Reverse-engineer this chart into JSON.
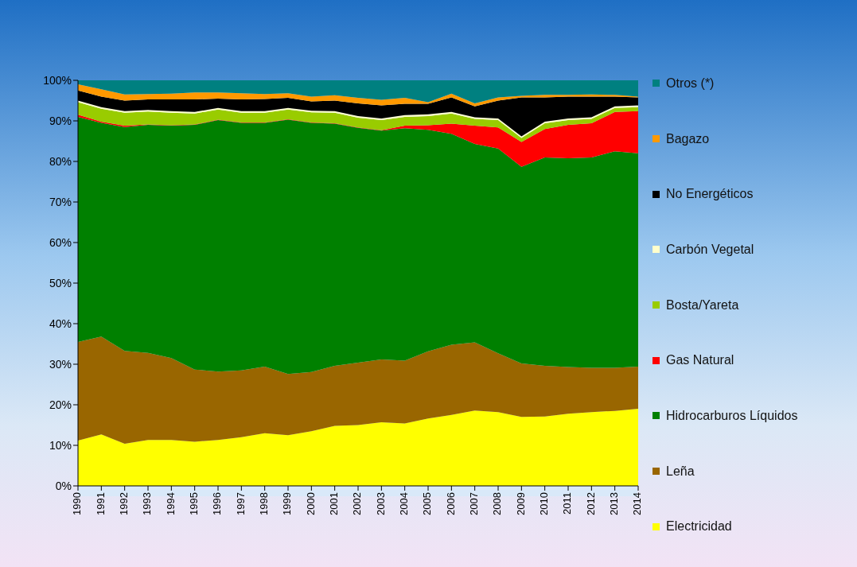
{
  "chart_data": {
    "type": "area",
    "stacked": true,
    "legend": "right",
    "grid": false,
    "categories": [
      "1990",
      "1991",
      "1992",
      "1993",
      "1994",
      "1995",
      "1996",
      "1997",
      "1998",
      "1999",
      "2000",
      "2001",
      "2002",
      "2003",
      "2004",
      "2005",
      "2006",
      "2007",
      "2008",
      "2009",
      "2010",
      "2011",
      "2012",
      "2013",
      "2014"
    ],
    "ylim": [
      0,
      100
    ],
    "yticks": [
      {
        "value": 0,
        "label": "0%"
      },
      {
        "value": 10,
        "label": "10%"
      },
      {
        "value": 20,
        "label": "20%"
      },
      {
        "value": 30,
        "label": "30%"
      },
      {
        "value": 40,
        "label": "40%"
      },
      {
        "value": 50,
        "label": "50%"
      },
      {
        "value": 60,
        "label": "60%"
      },
      {
        "value": 70,
        "label": "70%"
      },
      {
        "value": 80,
        "label": "80%"
      },
      {
        "value": 90,
        "label": "90%"
      },
      {
        "value": 100,
        "label": "100%"
      }
    ],
    "series": [
      {
        "name": "Electricidad",
        "color": "#ffff00",
        "values": [
          11.2,
          12.7,
          10.4,
          11.3,
          11.3,
          10.9,
          11.3,
          12,
          13,
          12.5,
          13.5,
          14.8,
          15,
          15.7,
          15.4,
          16.6,
          17.5,
          18.6,
          18.2,
          17,
          17.1,
          17.8,
          18.2,
          18.5,
          19
        ]
      },
      {
        "name": "Leña",
        "color": "#996600",
        "values": [
          24.3,
          24.1,
          22.9,
          21.5,
          20.2,
          17.8,
          16.9,
          16.5,
          16.4,
          15.1,
          14.6,
          14.8,
          15.4,
          15.5,
          15.5,
          16.6,
          17.3,
          16.8,
          14.5,
          13.2,
          12.5,
          11.5,
          10.9,
          10.6,
          10.4
        ]
      },
      {
        "name": "Hidrocarburos Líquidos",
        "color": "#008000",
        "values": [
          55.5,
          52.7,
          55.2,
          56.2,
          57.3,
          60.3,
          62,
          61,
          60.1,
          62.7,
          61.4,
          59.7,
          57.9,
          56.4,
          57.3,
          54.6,
          52,
          48.9,
          50.5,
          48.5,
          51.4,
          51.5,
          51.9,
          53.4,
          52.6
        ]
      },
      {
        "name": "Gas Natural",
        "color": "#ff0000",
        "values": [
          0.5,
          0.3,
          0.3,
          0.1,
          0.1,
          0.1,
          0.1,
          0.1,
          0.1,
          0.1,
          0.1,
          0.1,
          0.1,
          0.1,
          0.6,
          1.1,
          2.5,
          4.5,
          5.2,
          6.1,
          7,
          8.2,
          8.4,
          9.7,
          10.4
        ]
      },
      {
        "name": "Bosta/Yareta",
        "color": "#99cc00",
        "values": [
          3.1,
          3.2,
          3.2,
          3.2,
          3.1,
          2.7,
          2.5,
          2.4,
          2.4,
          2.4,
          2.5,
          2.6,
          2.4,
          2.5,
          2.2,
          2.3,
          2.5,
          1.7,
          1.8,
          1,
          1.4,
          1.2,
          1.1,
          1,
          1
        ]
      },
      {
        "name": "Carbón Vegetal",
        "color": "#ffffcc",
        "values": [
          0.4,
          0.4,
          0.4,
          0.4,
          0.4,
          0.4,
          0.4,
          0.4,
          0.4,
          0.4,
          0.4,
          0.4,
          0.4,
          0.4,
          0.4,
          0.4,
          0.4,
          0.4,
          0.4,
          0.4,
          0.4,
          0.4,
          0.4,
          0.4,
          0.4
        ]
      },
      {
        "name": "No Energéticos",
        "color": "#000000",
        "values": [
          2.5,
          2.6,
          2.6,
          2.6,
          2.9,
          3.1,
          2.3,
          2.9,
          3,
          2.5,
          2.3,
          2.6,
          3.1,
          3.2,
          2.8,
          2.6,
          3.6,
          2.7,
          4.4,
          9.6,
          6,
          5.4,
          5.1,
          2.4,
          2
        ]
      },
      {
        "name": "Bagazo",
        "color": "#ff9900",
        "values": [
          1.5,
          1.8,
          1.5,
          1.3,
          1.4,
          1.7,
          1.5,
          1.5,
          1.2,
          1.1,
          1.2,
          1.3,
          1.4,
          1.4,
          1.5,
          0.4,
          0.9,
          0.7,
          0.8,
          0.4,
          0.6,
          0.4,
          0.5,
          0.4,
          0.2
        ]
      },
      {
        "name": "Otros (*)",
        "color": "#008080",
        "values": [
          1,
          2.2,
          3.5,
          3.4,
          3.3,
          3,
          3,
          3.2,
          3.4,
          3.2,
          4,
          3.7,
          4.3,
          4.8,
          4.3,
          5.4,
          3.3,
          5.7,
          4.2,
          3.8,
          3.6,
          3.6,
          3.5,
          3.6,
          4
        ]
      }
    ]
  }
}
